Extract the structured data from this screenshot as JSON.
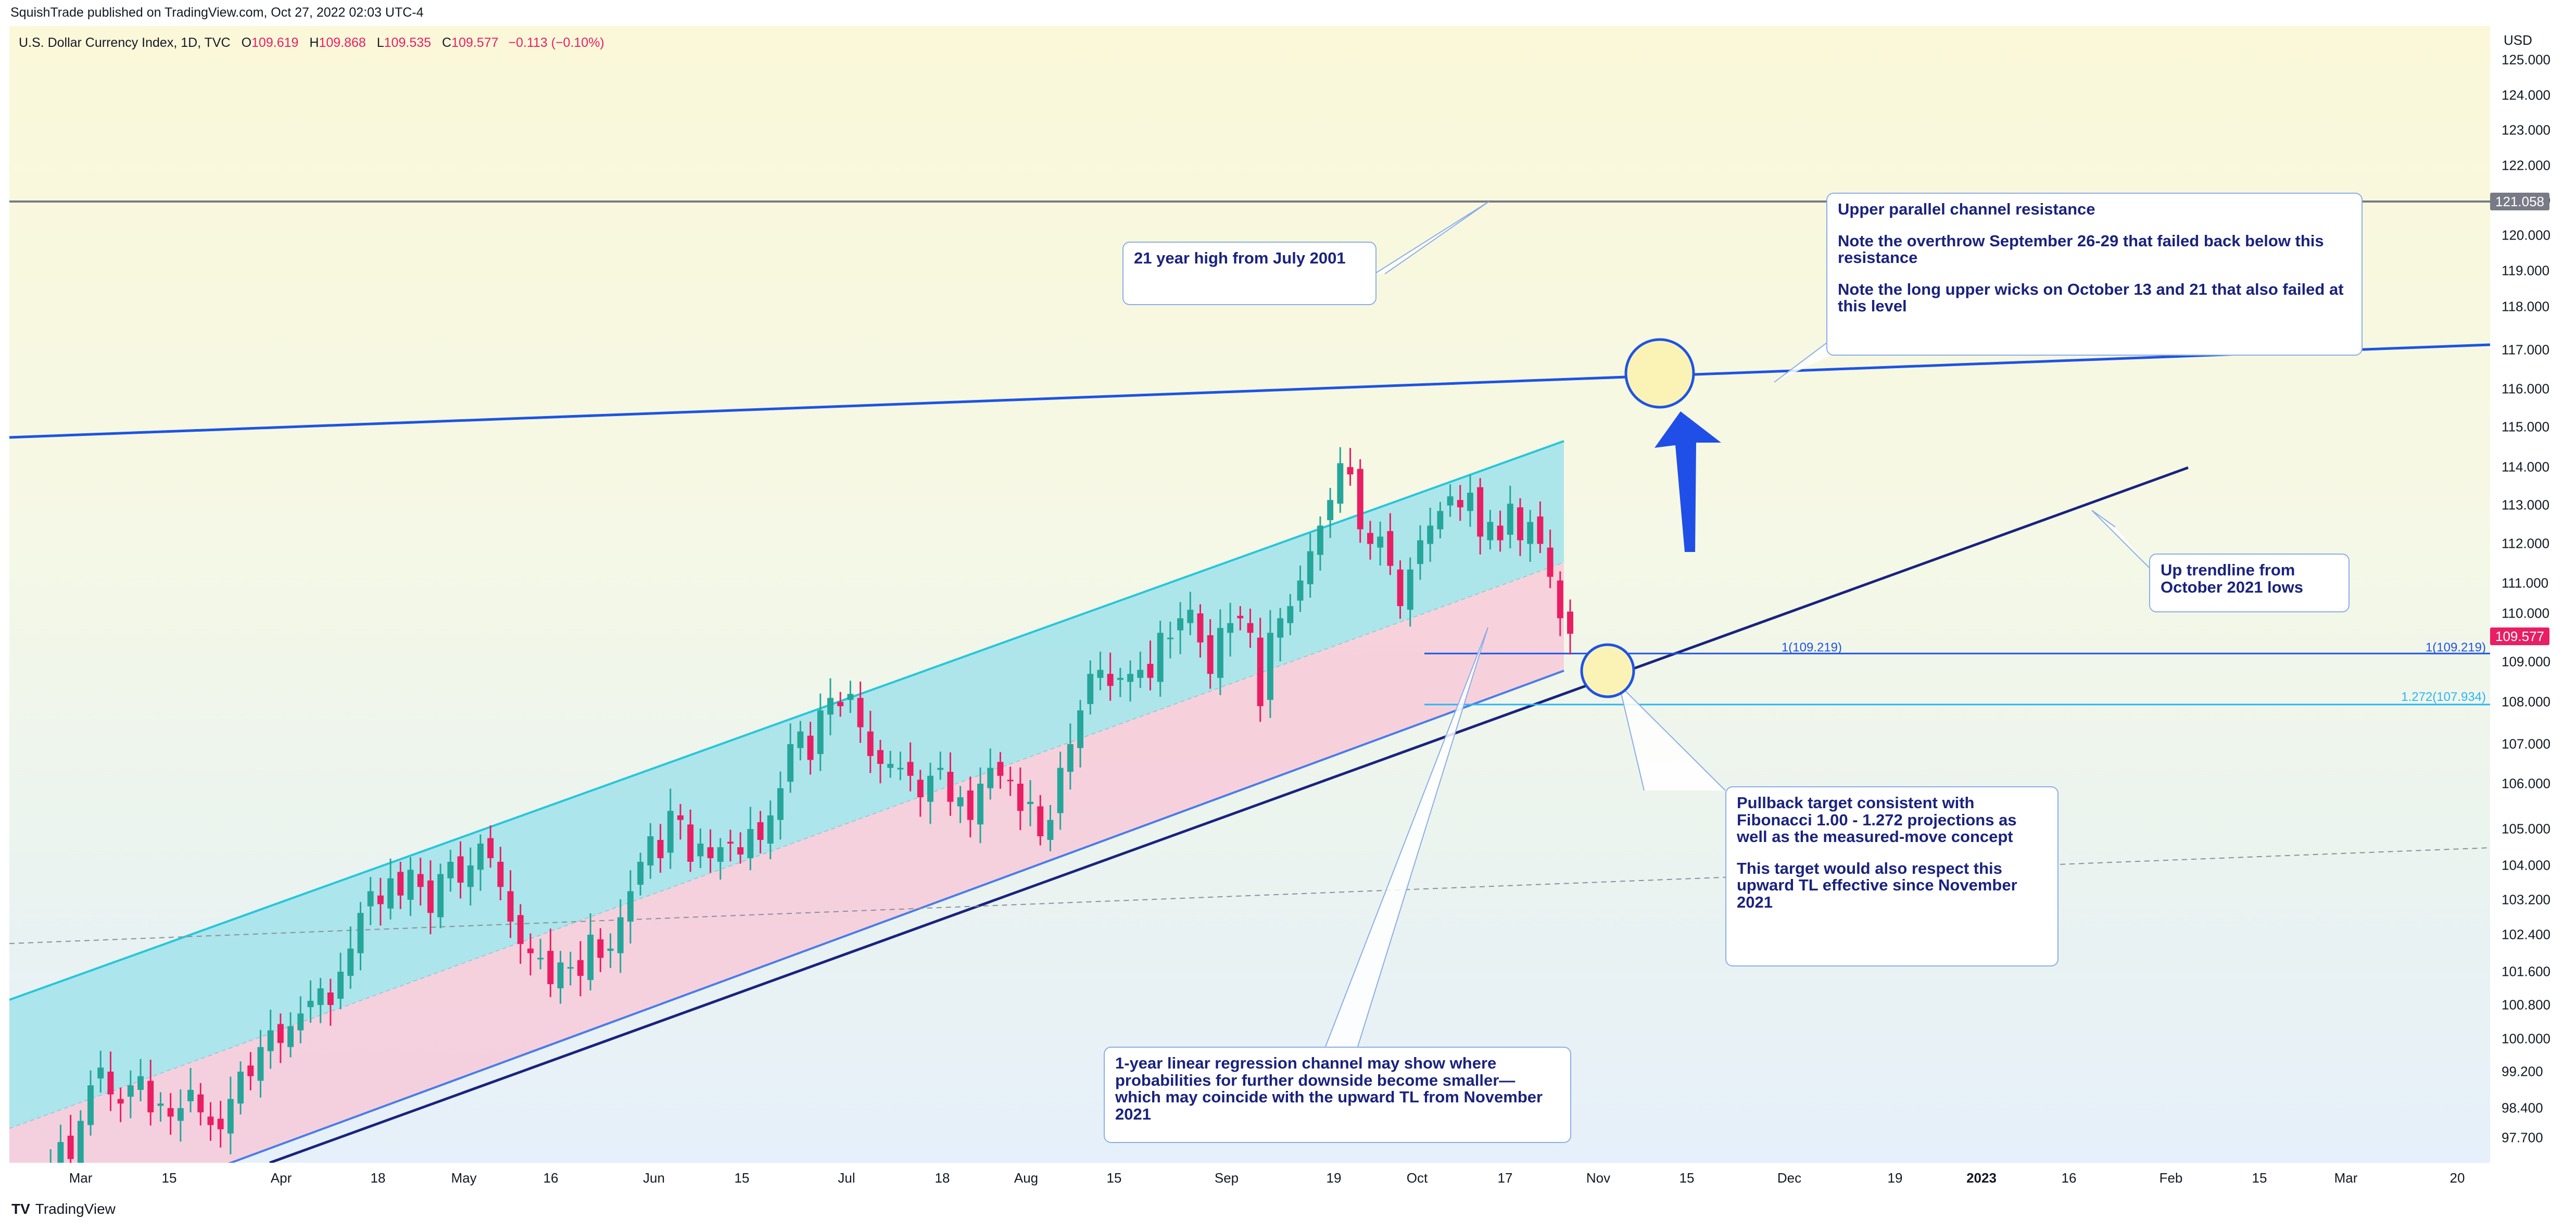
{
  "header": {
    "published": "SquishTrade published on TradingView.com, Oct 27, 2022 02:03 UTC-4"
  },
  "legend": {
    "symbol": "U.S. Dollar Currency Index, 1D, TVC",
    "o_label": "O",
    "o": "109.619",
    "h_label": "H",
    "h": "109.868",
    "l_label": "L",
    "l": "109.535",
    "c_label": "C",
    "c": "109.577",
    "change": "−0.113 (−0.10%)"
  },
  "annotations": {
    "high_2001": "21 year high from July 2001",
    "channel_resistance": {
      "line1": "Upper parallel channel resistance",
      "line2": "Note the overthrow September 26-29 that failed back below this resistance",
      "line3": "Note the long upper wicks on October 13 and 21 that also failed at this level"
    },
    "up_trendline": "Up trendline from October 2021 lows",
    "pullback": {
      "line1": "Pullback target consistent with Fibonacci 1.00 - 1.272 projections as well as the measured-move concept",
      "line2": "This target would also respect this upward TL effective since November 2021"
    },
    "regression": "1-year linear regression channel may show where probabilities for further downside become smaller—which may coincide with the upward TL from November 2021"
  },
  "fib": {
    "level1_label": "1(109.219)",
    "level1272_label": "1.272(107.934)"
  },
  "price_tags": {
    "resistance": "121.058",
    "last": "109.577"
  },
  "footer": {
    "brand_mark": "TV",
    "brand": "TradingView"
  },
  "colors": {
    "up": "#26a69a",
    "down": "#e91e63",
    "channel_upper": "#26c6da",
    "channel_lower": "#f8bbd0",
    "resistance_line": "#1e53e5",
    "trendline": "#1a237e",
    "fib1": "#1e53e5",
    "fib1272": "#29b6f6",
    "horizontal": "#787b86"
  },
  "chart_data": {
    "type": "candlestick",
    "title": "U.S. Dollar Currency Index, 1D, TVC",
    "ylabel": "USD",
    "ylim": [
      97.0,
      125.5
    ],
    "y_ticks": [
      "125.000",
      "124.000",
      "123.000",
      "122.000",
      "121.000",
      "120.000",
      "119.000",
      "118.000",
      "117.000",
      "116.000",
      "115.000",
      "114.000",
      "113.000",
      "112.000",
      "111.000",
      "110.000",
      "109.000",
      "108.000",
      "107.000",
      "106.000",
      "105.000",
      "104.000",
      "103.200",
      "102.400",
      "101.600",
      "100.800",
      "100.000",
      "99.200",
      "98.400",
      "97.700"
    ],
    "x_ticks": [
      "Mar",
      "15",
      "Apr",
      "18",
      "May",
      "16",
      "Jun",
      "15",
      "Jul",
      "18",
      "Aug",
      "15",
      "Sep",
      "19",
      "Oct",
      "17",
      "Nov",
      "15",
      "Dec",
      "19",
      "2023",
      "16",
      "Feb",
      "15",
      "Mar",
      "20"
    ],
    "x_ticks_bold": [
      "2023"
    ],
    "date_range": [
      "2022-02-24",
      "2023-03-23"
    ],
    "closes": [
      96.8,
      97.1,
      97.6,
      97.2,
      98.1,
      98.9,
      99.3,
      98.7,
      98.5,
      98.9,
      99.1,
      98.3,
      98.5,
      98.2,
      98.4,
      98.8,
      98.3,
      98.0,
      97.9,
      98.6,
      99.2,
      99.1,
      99.8,
      100.2,
      99.9,
      100.3,
      100.6,
      100.9,
      101.2,
      100.8,
      101.6,
      102.1,
      102.9,
      103.4,
      103.1,
      103.7,
      103.3,
      103.9,
      103.5,
      102.9,
      103.8,
      104.1,
      103.6,
      104.0,
      104.6,
      104.2,
      103.5,
      102.7,
      102.2,
      102.0,
      101.9,
      101.3,
      101.8,
      101.7,
      101.5,
      102.4,
      101.9,
      102.1,
      102.8,
      103.4,
      104.1,
      104.8,
      104.2,
      105.4,
      105.2,
      104.1,
      104.6,
      104.2,
      104.5,
      104.6,
      104.3,
      105.0,
      104.7,
      105.3,
      105.9,
      107.0,
      107.3,
      106.6,
      107.8,
      108.1,
      107.9,
      108.2,
      107.4,
      106.7,
      106.5,
      106.5,
      106.4,
      106.2,
      105.7,
      106.2,
      106.4,
      105.6,
      105.7,
      105.2,
      106.0,
      106.4,
      106.2,
      106.1,
      105.4,
      105.6,
      104.8,
      105.2,
      106.4,
      107.0,
      107.8,
      108.7,
      108.8,
      108.4,
      108.6,
      108.7,
      108.8,
      108.6,
      109.6,
      109.5,
      109.9,
      110.1,
      109.4,
      108.7,
      109.7,
      109.8,
      109.9,
      109.6,
      107.9,
      109.6,
      109.9,
      110.2,
      110.9,
      111.7,
      112.4,
      113.1,
      114.1,
      113.8,
      112.3,
      111.9,
      112.1,
      111.3,
      110.2,
      111.2,
      112.0,
      112.4,
      112.8,
      113.2,
      112.9,
      113.3,
      112.1,
      112.5,
      112.0,
      113.0,
      112.0,
      112.5,
      111.9,
      111.0,
      109.9,
      109.58
    ]
  }
}
